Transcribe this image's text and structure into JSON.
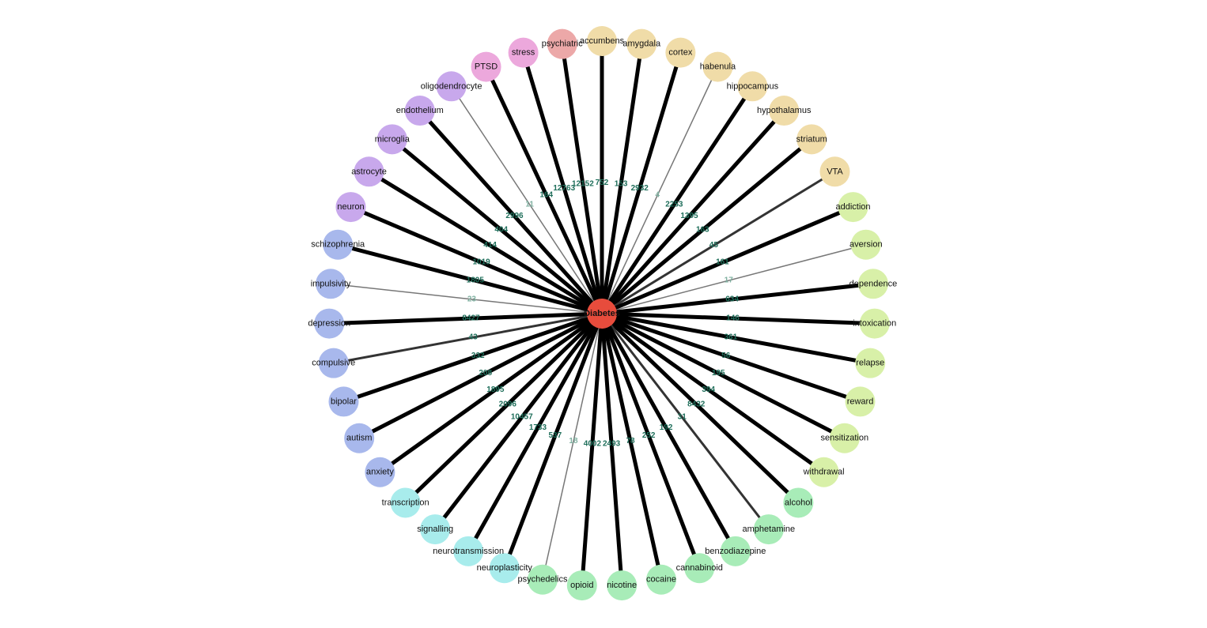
{
  "graph": {
    "center": {
      "label": "Diabetes",
      "color": "#e74c3c"
    },
    "groups": {
      "region": "#f0dca8",
      "outcome": "#d8f0a8",
      "drug": "#a8ecb8",
      "process": "#a8ecec",
      "disorder": "#a8b8ec",
      "cell": "#c8a8ec",
      "stress": "#eca8dc",
      "psychiatric": "#eca8a8"
    },
    "edge_colors": {
      "strong": "#000000",
      "weak": "#777777",
      "label_strong": "#1e6e5a",
      "label_weak": "#7fb0a0"
    },
    "nodes": [
      {
        "label": "accumbens",
        "group": "region",
        "count": "752",
        "strength": "strong"
      },
      {
        "label": "amygdala",
        "group": "region",
        "count": "153",
        "strength": "strong"
      },
      {
        "label": "cortex",
        "group": "region",
        "count": "2932",
        "strength": "strong"
      },
      {
        "label": "habenula",
        "group": "region",
        "count": "4",
        "strength": "weak"
      },
      {
        "label": "hippocampus",
        "group": "region",
        "count": "2253",
        "strength": "strong"
      },
      {
        "label": "hypothalamus",
        "group": "region",
        "count": "1395",
        "strength": "strong"
      },
      {
        "label": "striatum",
        "group": "region",
        "count": "163",
        "strength": "strong"
      },
      {
        "label": "VTA",
        "group": "region",
        "count": "45",
        "strength": "medium"
      },
      {
        "label": "addiction",
        "group": "outcome",
        "count": "161",
        "strength": "strong"
      },
      {
        "label": "aversion",
        "group": "outcome",
        "count": "17",
        "strength": "weak"
      },
      {
        "label": "dependence",
        "group": "outcome",
        "count": "634",
        "strength": "strong"
      },
      {
        "label": "intoxication",
        "group": "outcome",
        "count": "146",
        "strength": "strong"
      },
      {
        "label": "relapse",
        "group": "outcome",
        "count": "361",
        "strength": "strong"
      },
      {
        "label": "reward",
        "group": "outcome",
        "count": "56",
        "strength": "strong"
      },
      {
        "label": "sensitization",
        "group": "outcome",
        "count": "195",
        "strength": "strong"
      },
      {
        "label": "withdrawal",
        "group": "outcome",
        "count": "394",
        "strength": "strong"
      },
      {
        "label": "alcohol",
        "group": "drug",
        "count": "8432",
        "strength": "strong"
      },
      {
        "label": "amphetamine",
        "group": "drug",
        "count": "31",
        "strength": "medium"
      },
      {
        "label": "benzodiazepine",
        "group": "drug",
        "count": "192",
        "strength": "strong"
      },
      {
        "label": "cannabinoid",
        "group": "drug",
        "count": "252",
        "strength": "strong"
      },
      {
        "label": "cocaine",
        "group": "drug",
        "count": "78",
        "strength": "strong"
      },
      {
        "label": "nicotine",
        "group": "drug",
        "count": "2493",
        "strength": "strong"
      },
      {
        "label": "opioid",
        "group": "drug",
        "count": "4002",
        "strength": "strong"
      },
      {
        "label": "psychedelics",
        "group": "drug",
        "count": "18",
        "strength": "weak"
      },
      {
        "label": "neuroplasticity",
        "group": "process",
        "count": "537",
        "strength": "strong"
      },
      {
        "label": "neurotransmission",
        "group": "process",
        "count": "1733",
        "strength": "strong"
      },
      {
        "label": "signalling",
        "group": "process",
        "count": "10457",
        "strength": "strong"
      },
      {
        "label": "transcription",
        "group": "process",
        "count": "2096",
        "strength": "strong"
      },
      {
        "label": "anxiety",
        "group": "disorder",
        "count": "1895",
        "strength": "strong"
      },
      {
        "label": "autism",
        "group": "disorder",
        "count": "208",
        "strength": "strong"
      },
      {
        "label": "bipolar",
        "group": "disorder",
        "count": "332",
        "strength": "strong"
      },
      {
        "label": "compulsive",
        "group": "disorder",
        "count": "43",
        "strength": "medium"
      },
      {
        "label": "depression",
        "group": "disorder",
        "count": "8427",
        "strength": "strong"
      },
      {
        "label": "impulsivity",
        "group": "disorder",
        "count": "23",
        "strength": "weak"
      },
      {
        "label": "schizophrenia",
        "group": "disorder",
        "count": "1805",
        "strength": "strong"
      },
      {
        "label": "neuron",
        "group": "cell",
        "count": "1019",
        "strength": "strong"
      },
      {
        "label": "astrocyte",
        "group": "cell",
        "count": "414",
        "strength": "strong"
      },
      {
        "label": "microglia",
        "group": "cell",
        "count": "404",
        "strength": "strong"
      },
      {
        "label": "endothelium",
        "group": "cell",
        "count": "2996",
        "strength": "strong"
      },
      {
        "label": "oligodendrocyte",
        "group": "cell",
        "count": "11",
        "strength": "weak"
      },
      {
        "label": "PTSD",
        "group": "stress",
        "count": "164",
        "strength": "strong"
      },
      {
        "label": "stress",
        "group": "stress",
        "count": "12763",
        "strength": "strong"
      },
      {
        "label": "psychiatric",
        "group": "psychiatric",
        "count": "12152",
        "strength": "strong"
      }
    ]
  }
}
